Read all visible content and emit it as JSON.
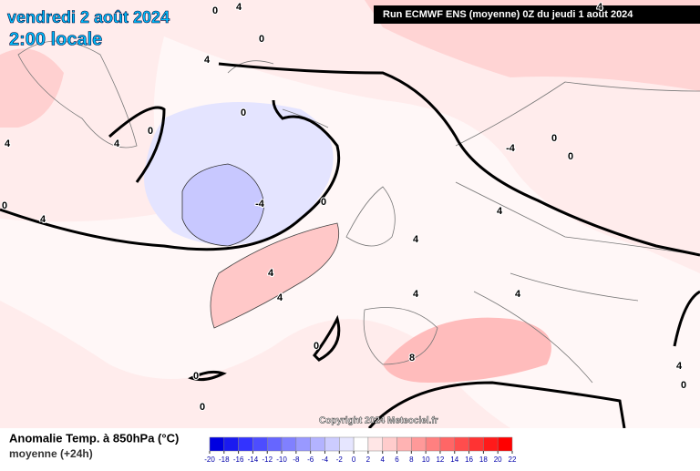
{
  "header": {
    "title": "vendredi 2 août 2024",
    "subtitle": "2:00 locale",
    "run": "Run ECMWF ENS (moyenne) 0Z du jeudi 1 août 2024"
  },
  "contour_labels": [
    "0",
    "4",
    "0",
    "4",
    "0",
    "0",
    "4",
    "4",
    "0",
    "4",
    "-4",
    "0",
    "4",
    "4",
    "4",
    "4",
    "0",
    "8",
    "0",
    "0",
    "-4",
    "0",
    "0",
    "4",
    "0",
    "4",
    "4",
    "4"
  ],
  "copyright": "Copyright 2024 Meteociel.fr",
  "legend": {
    "title": "Anomalie Temp. à 850hPa (°C)",
    "subtitle": "moyenne  (+24h)",
    "ticks": [
      -20,
      -18,
      -16,
      -14,
      -12,
      -10,
      -8,
      -6,
      -4,
      -2,
      0,
      2,
      4,
      6,
      8,
      10,
      12,
      14,
      16,
      18,
      20,
      22
    ],
    "colors": [
      "#0000e0",
      "#1a1af0",
      "#3333ff",
      "#4d4dff",
      "#6666ff",
      "#8080ff",
      "#9999ff",
      "#b3b3ff",
      "#ccccff",
      "#e6e6ff",
      "#ffffff",
      "#ffe6e6",
      "#ffcccc",
      "#ffb3b3",
      "#ff9999",
      "#ff8080",
      "#ff6666",
      "#ff4d4d",
      "#ff3333",
      "#ff1a1a",
      "#ff0000"
    ]
  }
}
